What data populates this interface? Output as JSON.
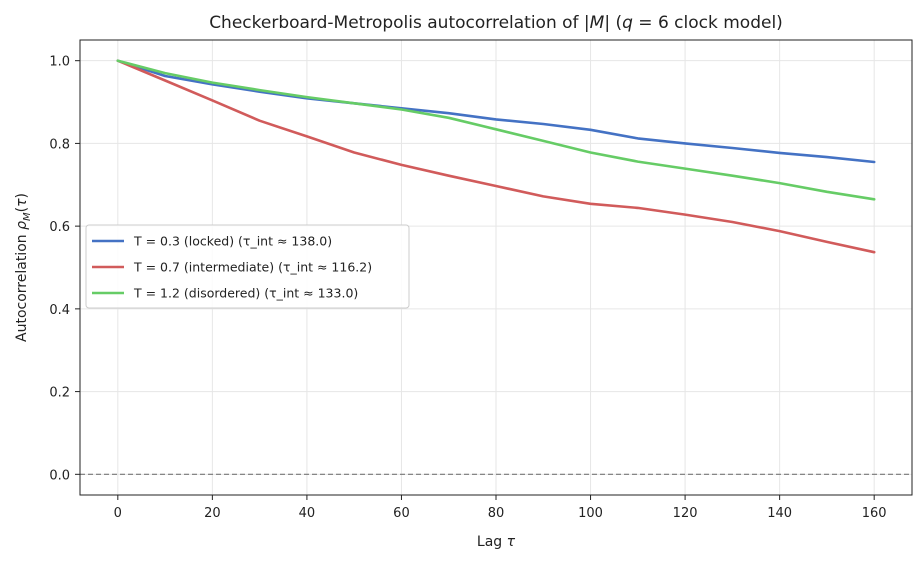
{
  "chart_data": {
    "type": "line",
    "title": "Checkerboard-Metropolis autocorrelation of |M| (q = 6 clock model)",
    "xlabel": "Lag τ",
    "ylabel": "Autocorrelation ρ_M(τ)",
    "xlim": [
      -8,
      168
    ],
    "ylim": [
      -0.05,
      1.05
    ],
    "xticks": [
      0,
      20,
      40,
      60,
      80,
      100,
      120,
      140,
      160
    ],
    "yticks": [
      0.0,
      0.2,
      0.4,
      0.6,
      0.8,
      1.0
    ],
    "grid": true,
    "legend_position": "center-left",
    "reference_line": {
      "y": 0.0,
      "style": "dashed",
      "color": "#777777"
    },
    "x": [
      0,
      10,
      20,
      30,
      40,
      50,
      60,
      70,
      80,
      90,
      100,
      110,
      120,
      130,
      140,
      150,
      160
    ],
    "series": [
      {
        "name": "T = 0.3 (locked)  (τ_int ≈ 138.0)",
        "color": "#4472c4",
        "values": [
          1.0,
          0.963,
          0.943,
          0.925,
          0.909,
          0.897,
          0.885,
          0.873,
          0.858,
          0.847,
          0.833,
          0.812,
          0.8,
          0.789,
          0.777,
          0.767,
          0.755
        ]
      },
      {
        "name": "T = 0.7 (intermediate)  (τ_int ≈ 116.2)",
        "color": "#d15b5b",
        "values": [
          1.0,
          0.952,
          0.904,
          0.855,
          0.817,
          0.778,
          0.748,
          0.722,
          0.697,
          0.672,
          0.654,
          0.644,
          0.628,
          0.61,
          0.588,
          0.562,
          0.537
        ]
      },
      {
        "name": "T = 1.2 (disordered)  (τ_int ≈ 133.0)",
        "color": "#66cc66",
        "values": [
          1.0,
          0.97,
          0.947,
          0.929,
          0.912,
          0.897,
          0.882,
          0.862,
          0.834,
          0.806,
          0.778,
          0.756,
          0.739,
          0.722,
          0.704,
          0.683,
          0.665
        ]
      }
    ]
  }
}
